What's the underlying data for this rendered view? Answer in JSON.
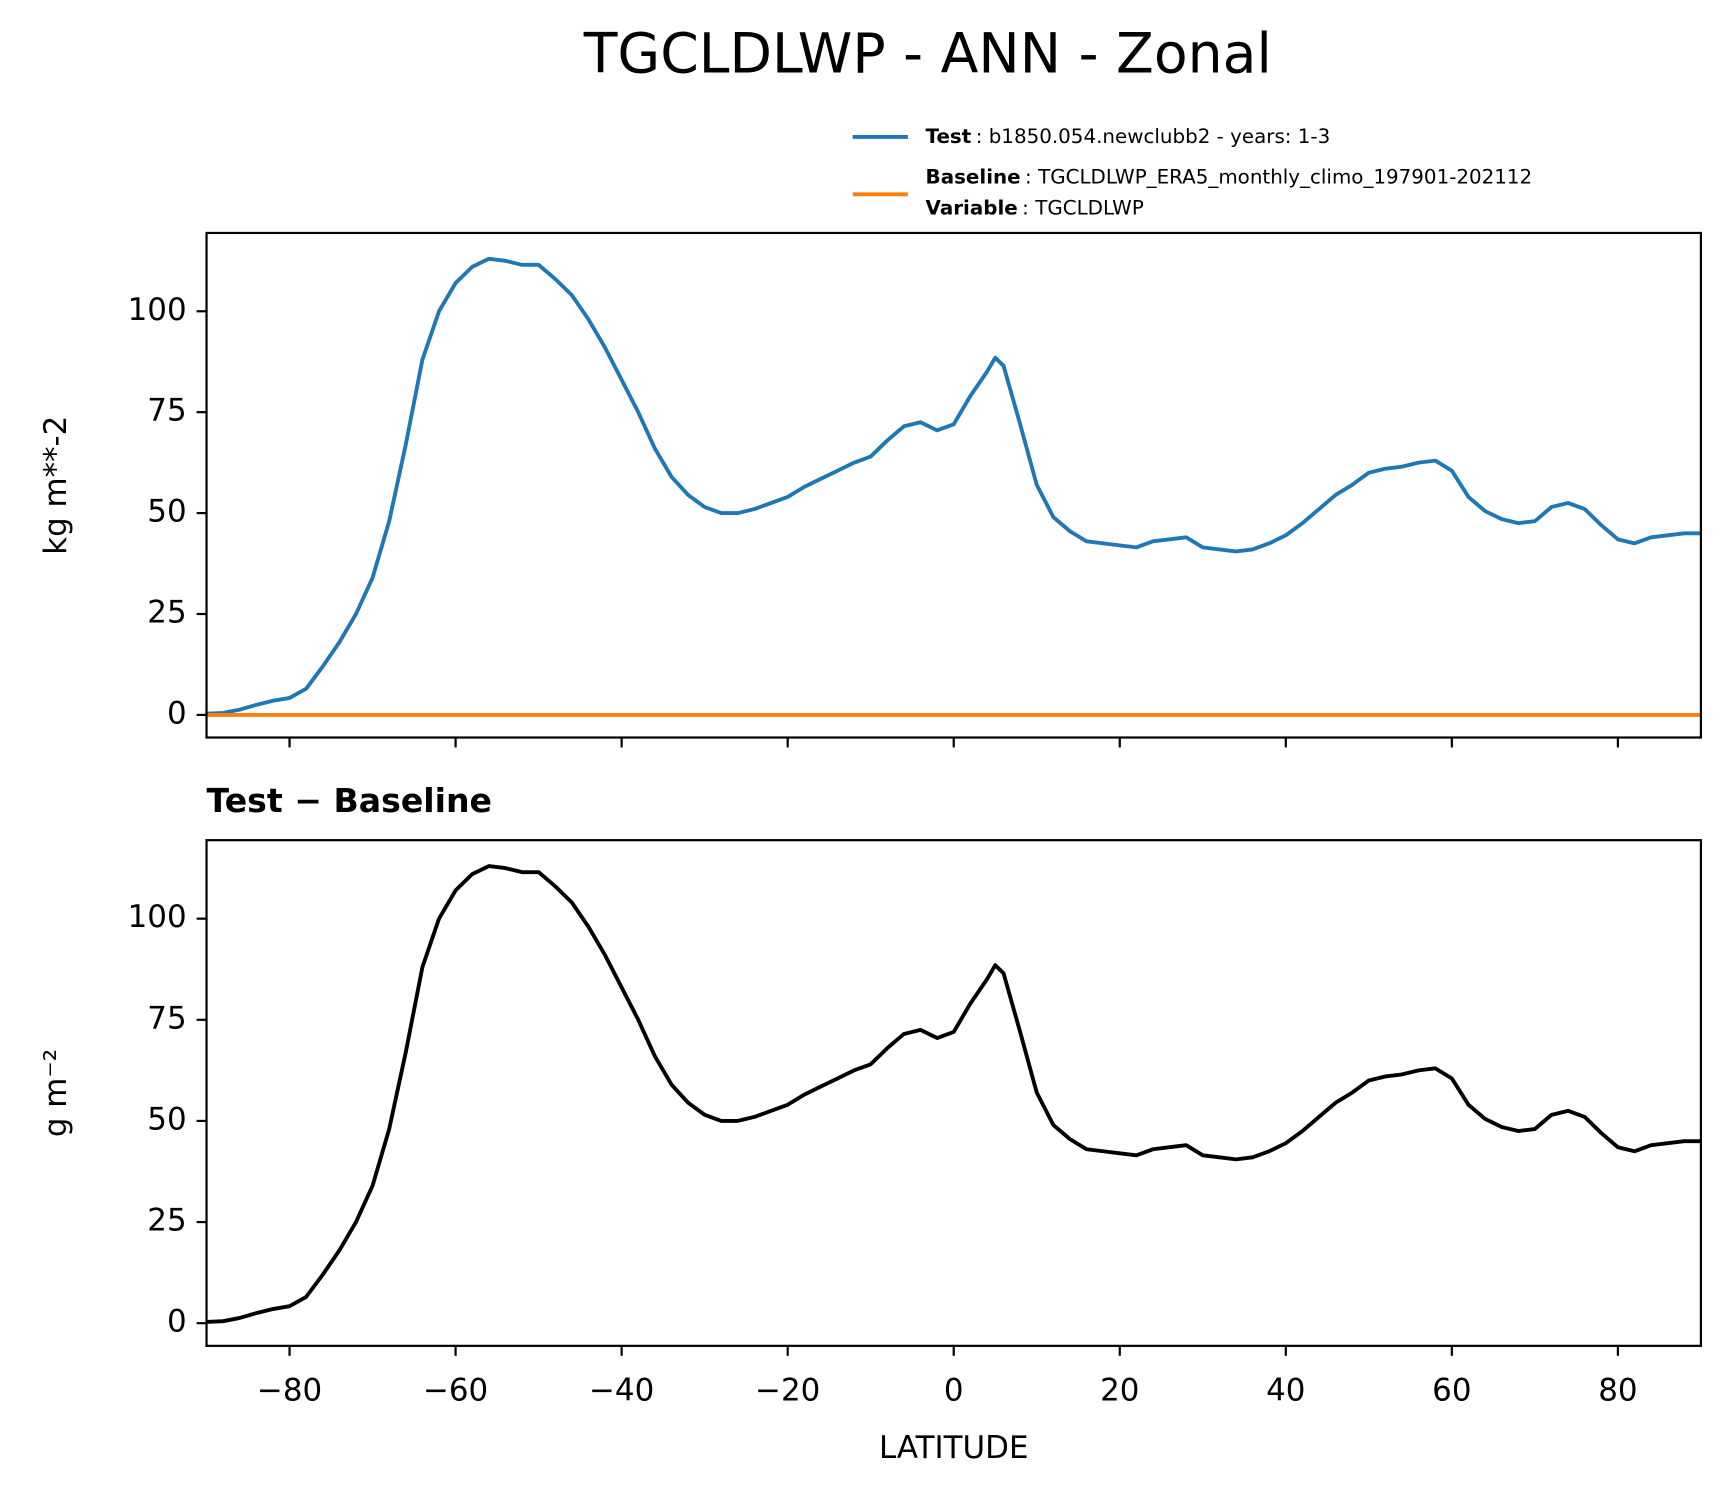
{
  "title": "TGCLDLWP - ANN - Zonal",
  "legend_note": {
    "name": "Variable",
    "text": ": TGCLDLWP"
  },
  "chart_data": [
    {
      "type": "line",
      "ylabel": "kg m**-2",
      "xlim": [
        -90,
        90
      ],
      "ylim": [
        -5.6,
        119.4
      ],
      "xticks": [
        -80,
        -60,
        -40,
        -20,
        0,
        20,
        40,
        60,
        80
      ],
      "show_xtick_labels": false,
      "yticks": [
        0,
        25,
        50,
        75,
        100
      ],
      "x": [
        -90,
        -88,
        -86,
        -84,
        -82,
        -80,
        -78,
        -76,
        -74,
        -72,
        -70,
        -68,
        -66,
        -64,
        -62,
        -60,
        -58,
        -56,
        -54,
        -52,
        -50,
        -48,
        -46,
        -44,
        -42,
        -40,
        -38,
        -36,
        -34,
        -32,
        -30,
        -28,
        -26,
        -24,
        -22,
        -20,
        -18,
        -16,
        -14,
        -12,
        -10,
        -8,
        -6,
        -4,
        -2,
        0,
        2,
        4,
        5,
        6,
        8,
        10,
        12,
        14,
        16,
        18,
        20,
        22,
        24,
        26,
        28,
        30,
        32,
        34,
        36,
        38,
        40,
        42,
        44,
        46,
        48,
        50,
        52,
        54,
        56,
        58,
        60,
        62,
        64,
        66,
        68,
        70,
        72,
        74,
        76,
        78,
        80,
        82,
        84,
        86,
        88,
        90
      ],
      "legend": "upper right",
      "series": [
        {
          "name": "Test",
          "description": ": b1850.054.newclubb2 - years: 1-3",
          "color": "#1f77b4",
          "values": [
            0.3,
            0.5,
            1.3,
            2.5,
            3.5,
            4.2,
            6.5,
            12,
            18,
            25,
            34,
            48,
            67,
            88,
            100,
            107,
            111,
            113,
            112.5,
            111.5,
            111.5,
            108,
            104,
            98,
            91,
            83,
            75,
            66,
            59,
            54.5,
            51.5,
            50,
            50,
            51,
            52.5,
            54,
            56.5,
            58.5,
            60.5,
            62.5,
            64,
            68,
            71.5,
            72.5,
            70.5,
            72,
            79,
            85,
            88.5,
            86.5,
            72,
            57,
            49,
            45.5,
            43,
            42.5,
            42,
            41.5,
            43,
            43.5,
            44,
            41.5,
            41,
            40.5,
            41,
            42.5,
            44.5,
            47.5,
            51,
            54.5,
            57,
            60,
            61,
            61.5,
            62.5,
            63,
            60.5,
            54,
            50.5,
            48.5,
            47.5,
            48,
            51.5,
            52.5,
            51,
            47,
            43.5,
            42.5,
            44,
            44.5,
            45,
            45
          ]
        },
        {
          "name": "Baseline",
          "description": ": TGCLDLWP_ERA5_monthly_climo_197901-202112",
          "color": "#ff7f0e",
          "values": [
            0,
            0,
            0,
            0,
            0,
            0,
            0,
            0,
            0,
            0,
            0,
            0,
            0,
            0,
            0,
            0,
            0,
            0,
            0,
            0,
            0,
            0,
            0,
            0,
            0,
            0,
            0,
            0,
            0,
            0,
            0,
            0,
            0,
            0,
            0,
            0,
            0,
            0,
            0,
            0,
            0,
            0,
            0,
            0,
            0,
            0,
            0,
            0,
            0,
            0,
            0,
            0,
            0,
            0,
            0,
            0,
            0,
            0,
            0,
            0,
            0,
            0,
            0,
            0,
            0,
            0,
            0,
            0,
            0,
            0,
            0,
            0,
            0,
            0,
            0,
            0,
            0,
            0,
            0,
            0,
            0,
            0,
            0,
            0,
            0,
            0,
            0,
            0,
            0,
            0,
            0,
            0
          ]
        }
      ]
    },
    {
      "type": "line",
      "title": "Test − Baseline",
      "ylabel": "g m⁻²",
      "xlabel": "LATITUDE",
      "xlim": [
        -90,
        90
      ],
      "ylim": [
        -5.6,
        119.4
      ],
      "xticks": [
        {
          "value": -80,
          "label": "−80"
        },
        {
          "value": -60,
          "label": "−60"
        },
        {
          "value": -40,
          "label": "−40"
        },
        {
          "value": -20,
          "label": "−20"
        },
        0,
        20,
        40,
        60,
        80
      ],
      "show_xtick_labels": true,
      "yticks": [
        0,
        25,
        50,
        75,
        100
      ],
      "x": [
        -90,
        -88,
        -86,
        -84,
        -82,
        -80,
        -78,
        -76,
        -74,
        -72,
        -70,
        -68,
        -66,
        -64,
        -62,
        -60,
        -58,
        -56,
        -54,
        -52,
        -50,
        -48,
        -46,
        -44,
        -42,
        -40,
        -38,
        -36,
        -34,
        -32,
        -30,
        -28,
        -26,
        -24,
        -22,
        -20,
        -18,
        -16,
        -14,
        -12,
        -10,
        -8,
        -6,
        -4,
        -2,
        0,
        2,
        4,
        5,
        6,
        8,
        10,
        12,
        14,
        16,
        18,
        20,
        22,
        24,
        26,
        28,
        30,
        32,
        34,
        36,
        38,
        40,
        42,
        44,
        46,
        48,
        50,
        52,
        54,
        56,
        58,
        60,
        62,
        64,
        66,
        68,
        70,
        72,
        74,
        76,
        78,
        80,
        82,
        84,
        86,
        88,
        90
      ],
      "color": "#000000",
      "values": [
        0.3,
        0.5,
        1.3,
        2.5,
        3.5,
        4.2,
        6.5,
        12,
        18,
        25,
        34,
        48,
        67,
        88,
        100,
        107,
        111,
        113,
        112.5,
        111.5,
        111.5,
        108,
        104,
        98,
        91,
        83,
        75,
        66,
        59,
        54.5,
        51.5,
        50,
        50,
        51,
        52.5,
        54,
        56.5,
        58.5,
        60.5,
        62.5,
        64,
        68,
        71.5,
        72.5,
        70.5,
        72,
        79,
        85,
        88.5,
        86.5,
        72,
        57,
        49,
        45.5,
        43,
        42.5,
        42,
        41.5,
        43,
        43.5,
        44,
        41.5,
        41,
        40.5,
        41,
        42.5,
        44.5,
        47.5,
        51,
        54.5,
        57,
        60,
        61,
        61.5,
        62.5,
        63,
        60.5,
        54,
        50.5,
        48.5,
        47.5,
        48,
        51.5,
        52.5,
        51,
        47,
        43.5,
        42.5,
        44,
        44.5,
        45,
        45
      ]
    }
  ]
}
